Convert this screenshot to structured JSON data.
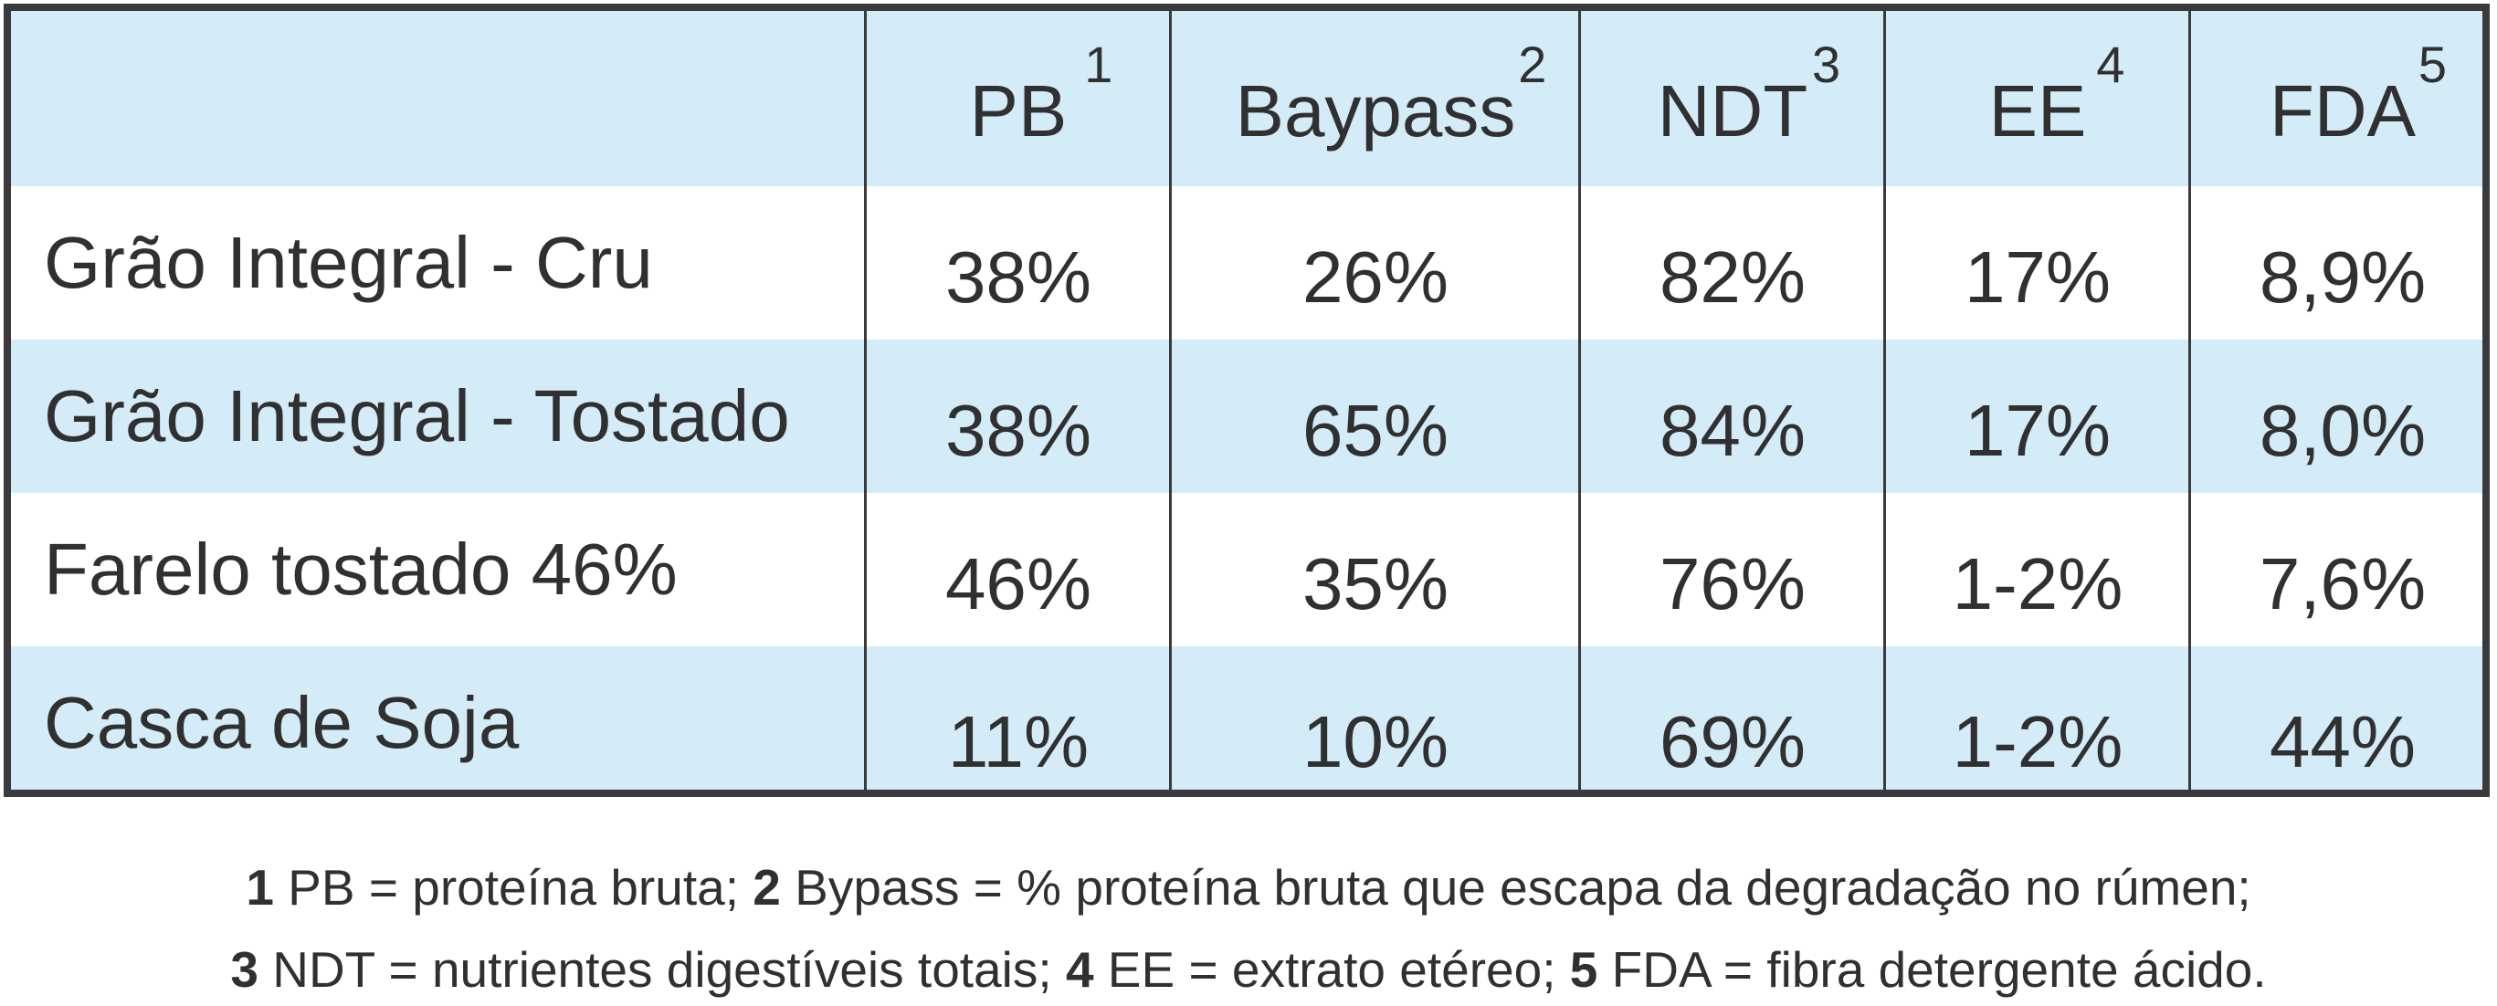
{
  "table": {
    "headers": [
      {
        "label": "PB",
        "sup": "1"
      },
      {
        "label": "Baypass",
        "sup": "2"
      },
      {
        "label": "NDT",
        "sup": "3"
      },
      {
        "label": "EE",
        "sup": "4"
      },
      {
        "label": "FDA",
        "sup": "5"
      }
    ],
    "rows": [
      {
        "label": "Grão Integral - Cru",
        "values": [
          "38%",
          "26%",
          "82%",
          "17%",
          "8,9%"
        ]
      },
      {
        "label": "Grão Integral - Tostado",
        "values": [
          "38%",
          "65%",
          "84%",
          "17%",
          "8,0%"
        ]
      },
      {
        "label": "Farelo tostado 46%",
        "values": [
          "46%",
          "35%",
          "76%",
          "1-2%",
          "7,6%"
        ]
      },
      {
        "label": "Casca de Soja",
        "values": [
          "11%",
          "10%",
          "69%",
          "1-2%",
          "44%"
        ]
      }
    ]
  },
  "footnotes": {
    "line1": [
      {
        "num": "1",
        "text": " PB = proteína bruta; "
      },
      {
        "num": "2",
        "text": " Bypass = % proteína bruta que escapa da degradação no rúmen;"
      }
    ],
    "line2": [
      {
        "num": "3",
        "text": " NDT = nutrientes digestíveis totais; "
      },
      {
        "num": "4",
        "text": " EE = extrato etéreo; "
      },
      {
        "num": "5",
        "text": " FDA = fibra detergente ácido."
      }
    ]
  },
  "colors": {
    "band_blue": "#d4ebf8",
    "border": "#3a3a3c",
    "text": "#303030"
  }
}
